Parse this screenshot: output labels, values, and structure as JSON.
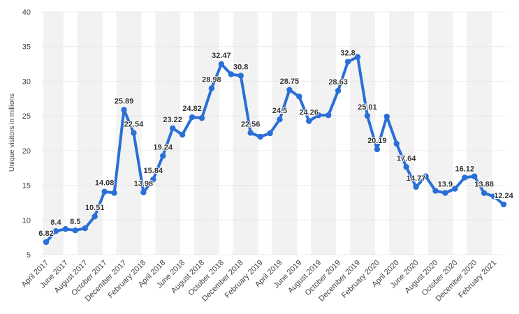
{
  "chart_data": {
    "type": "line",
    "ylabel": "Unique visitors in millions",
    "xlabel": "",
    "ylim": [
      5,
      40
    ],
    "yticks": [
      5,
      10,
      15,
      20,
      25,
      30,
      35,
      40
    ],
    "grid": true,
    "line_color": "#2a6fd6",
    "band_color": "#f2f2f2",
    "x_tick_labels": [
      "April 2017",
      "June 2017",
      "August 2017",
      "October 2017",
      "December 2017",
      "February 2018",
      "April 2018",
      "June 2018",
      "August 2018",
      "October 2018",
      "December 2018",
      "February 2019",
      "April 2019",
      "June 2019",
      "August 2019",
      "October 2019",
      "December 2019",
      "February 2020",
      "April 2020",
      "June 2020",
      "August 2020",
      "October 2020",
      "December 2020",
      "February 2021"
    ],
    "series": [
      {
        "values": [
          6.82,
          8.4,
          8.7,
          8.5,
          8.8,
          10.51,
          14.08,
          13.9,
          25.89,
          22.54,
          13.98,
          15.84,
          19.24,
          23.22,
          22.3,
          24.82,
          24.7,
          28.98,
          32.47,
          31.0,
          30.8,
          22.56,
          22.0,
          22.5,
          24.5,
          28.75,
          27.8,
          24.26,
          25.1,
          25.1,
          28.63,
          32.8,
          33.5,
          25.01,
          20.19,
          24.9,
          21.0,
          17.64,
          14.77,
          16.3,
          14.2,
          13.9,
          14.5,
          16.12,
          16.3,
          13.88,
          13.4,
          12.24
        ]
      }
    ],
    "data_labels": [
      {
        "i": 0,
        "text": "6.82"
      },
      {
        "i": 1,
        "text": "8.4"
      },
      {
        "i": 3,
        "text": "8.5"
      },
      {
        "i": 5,
        "text": "10.51"
      },
      {
        "i": 6,
        "text": "14.08"
      },
      {
        "i": 8,
        "text": "25.89"
      },
      {
        "i": 9,
        "text": "22.54"
      },
      {
        "i": 10,
        "text": "13.98"
      },
      {
        "i": 11,
        "text": "15.84"
      },
      {
        "i": 12,
        "text": "19.24"
      },
      {
        "i": 13,
        "text": "23.22"
      },
      {
        "i": 15,
        "text": "24.82"
      },
      {
        "i": 17,
        "text": "28.98"
      },
      {
        "i": 18,
        "text": "32.47"
      },
      {
        "i": 20,
        "text": "30.8"
      },
      {
        "i": 21,
        "text": "22.56"
      },
      {
        "i": 24,
        "text": "24.5"
      },
      {
        "i": 25,
        "text": "28.75"
      },
      {
        "i": 27,
        "text": "24.26"
      },
      {
        "i": 30,
        "text": "28.63"
      },
      {
        "i": 31,
        "text": "32.8"
      },
      {
        "i": 33,
        "text": "25.01"
      },
      {
        "i": 34,
        "text": "20.19"
      },
      {
        "i": 37,
        "text": "17.64"
      },
      {
        "i": 38,
        "text": "14.77"
      },
      {
        "i": 41,
        "text": "13.9"
      },
      {
        "i": 43,
        "text": "16.12"
      },
      {
        "i": 45,
        "text": "13.88"
      },
      {
        "i": 47,
        "text": "12.24"
      }
    ]
  }
}
